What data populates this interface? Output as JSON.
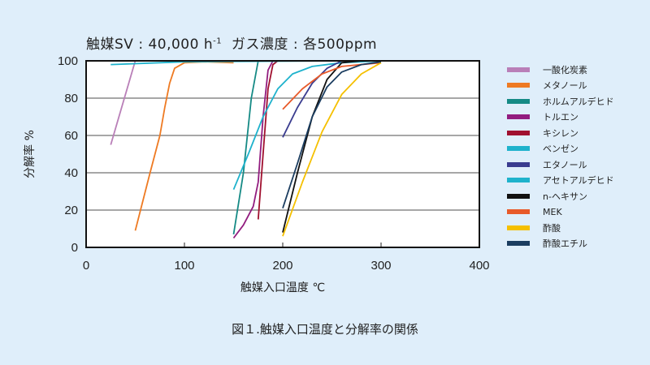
{
  "header": {
    "subtitle_main": "触媒SV : 40,000 h",
    "subtitle_sup": "-1",
    "subtitle_rest": "ガス濃度 : 各500ppm"
  },
  "axes": {
    "ylabel": "分解率 %",
    "xlabel": "触媒入口温度 ℃",
    "yticks": [
      "0",
      "20",
      "40",
      "60",
      "80",
      "100"
    ],
    "xticks": [
      "0",
      "100",
      "200",
      "300",
      "400"
    ]
  },
  "caption": "図１.触媒入口温度と分解率の関係",
  "chart_data": {
    "type": "line",
    "title": "触媒SV : 40,000 h-1 ガス濃度 : 各500ppm",
    "xlabel": "触媒入口温度 ℃",
    "ylabel": "分解率 %",
    "xlim": [
      0,
      400
    ],
    "ylim": [
      0,
      100
    ],
    "grid": "horizontal",
    "legend_position": "right",
    "caption": "図１.触媒入口温度と分解率の関係",
    "series": [
      {
        "name": "一酸化炭素",
        "color": "#b97fb8",
        "points": [
          [
            25,
            55
          ],
          [
            50,
            100
          ]
        ]
      },
      {
        "name": "メタノール",
        "color": "#ee7a22",
        "points": [
          [
            50,
            9
          ],
          [
            65,
            40
          ],
          [
            75,
            60
          ],
          [
            80,
            75
          ],
          [
            85,
            88
          ],
          [
            90,
            96
          ],
          [
            100,
            99
          ],
          [
            120,
            99.5
          ],
          [
            150,
            99
          ]
        ]
      },
      {
        "name": "ホルムアルデヒド",
        "color": "#158a85",
        "points": [
          [
            150,
            7
          ],
          [
            160,
            40
          ],
          [
            168,
            80
          ],
          [
            175,
            100
          ]
        ]
      },
      {
        "name": "トルエン",
        "color": "#921c7f",
        "points": [
          [
            150,
            5
          ],
          [
            160,
            12
          ],
          [
            170,
            22
          ],
          [
            175,
            35
          ],
          [
            180,
            70
          ],
          [
            185,
            95
          ],
          [
            190,
            100
          ]
        ]
      },
      {
        "name": "キシレン",
        "color": "#a0102f",
        "points": [
          [
            175,
            15
          ],
          [
            180,
            50
          ],
          [
            185,
            85
          ],
          [
            190,
            98
          ],
          [
            195,
            100
          ]
        ]
      },
      {
        "name": "ベンゼン",
        "color": "#1eb2cc",
        "points": [
          [
            150,
            31
          ],
          [
            165,
            50
          ],
          [
            180,
            70
          ],
          [
            195,
            85
          ],
          [
            210,
            93
          ],
          [
            230,
            97
          ],
          [
            260,
            99
          ],
          [
            300,
            100
          ]
        ]
      },
      {
        "name": "エタノール",
        "color": "#3a3c8f",
        "points": [
          [
            200,
            59
          ],
          [
            215,
            75
          ],
          [
            230,
            88
          ],
          [
            245,
            96
          ],
          [
            260,
            100
          ]
        ]
      },
      {
        "name": "アセトアルデヒド",
        "color": "#1eb2cc",
        "points": [
          [
            25,
            98
          ],
          [
            100,
            99.5
          ],
          [
            250,
            100
          ],
          [
            350,
            100
          ]
        ]
      },
      {
        "name": "n-ヘキサン",
        "color": "#111111",
        "points": [
          [
            200,
            8
          ],
          [
            215,
            40
          ],
          [
            230,
            70
          ],
          [
            245,
            90
          ],
          [
            260,
            99
          ],
          [
            280,
            100
          ],
          [
            350,
            100
          ]
        ]
      },
      {
        "name": "MEK",
        "color": "#e85a2a",
        "points": [
          [
            200,
            74
          ],
          [
            220,
            85
          ],
          [
            240,
            93
          ],
          [
            260,
            97
          ],
          [
            300,
            99
          ]
        ]
      },
      {
        "name": "酢酸",
        "color": "#f5c000",
        "points": [
          [
            200,
            6
          ],
          [
            220,
            35
          ],
          [
            240,
            62
          ],
          [
            260,
            82
          ],
          [
            280,
            93
          ],
          [
            300,
            99
          ]
        ]
      },
      {
        "name": "酢酸エチル",
        "color": "#1b3d60",
        "points": [
          [
            200,
            21
          ],
          [
            215,
            45
          ],
          [
            230,
            70
          ],
          [
            245,
            86
          ],
          [
            260,
            94
          ],
          [
            280,
            98
          ],
          [
            300,
            99.5
          ]
        ]
      }
    ]
  }
}
